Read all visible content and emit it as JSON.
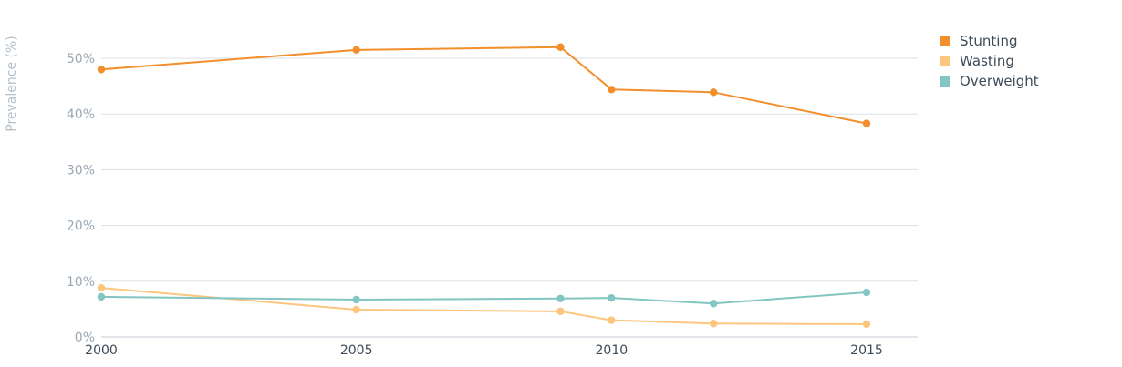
{
  "chart_data": {
    "type": "line",
    "ylabel": "Prevalence (%)",
    "xlim": [
      2000,
      2016
    ],
    "ylim": [
      0,
      55
    ],
    "yticks": [
      0,
      10,
      20,
      30,
      40,
      50
    ],
    "ytick_labels": [
      "0%",
      "10%",
      "20%",
      "30%",
      "40%",
      "50%"
    ],
    "xticks": [
      2000,
      2005,
      2010,
      2015
    ],
    "xtick_labels": [
      "2000",
      "2005",
      "2010",
      "2015"
    ],
    "grid": true,
    "legend_position": "top-right",
    "series": [
      {
        "name": "Stunting",
        "color": "#f28e2b",
        "x": [
          2000,
          2005,
          2009,
          2010,
          2012,
          2015
        ],
        "y": [
          48.0,
          51.5,
          52.0,
          44.4,
          43.9,
          38.3
        ]
      },
      {
        "name": "Wasting",
        "color": "#fcc67f",
        "x": [
          2000,
          2005,
          2009,
          2010,
          2012,
          2015
        ],
        "y": [
          8.8,
          4.9,
          4.6,
          3.0,
          2.4,
          2.3
        ]
      },
      {
        "name": "Overweight",
        "color": "#83c5c2",
        "x": [
          2000,
          2005,
          2009,
          2010,
          2012,
          2015
        ],
        "y": [
          7.2,
          6.7,
          6.9,
          7.0,
          6.0,
          8.0
        ]
      }
    ]
  }
}
